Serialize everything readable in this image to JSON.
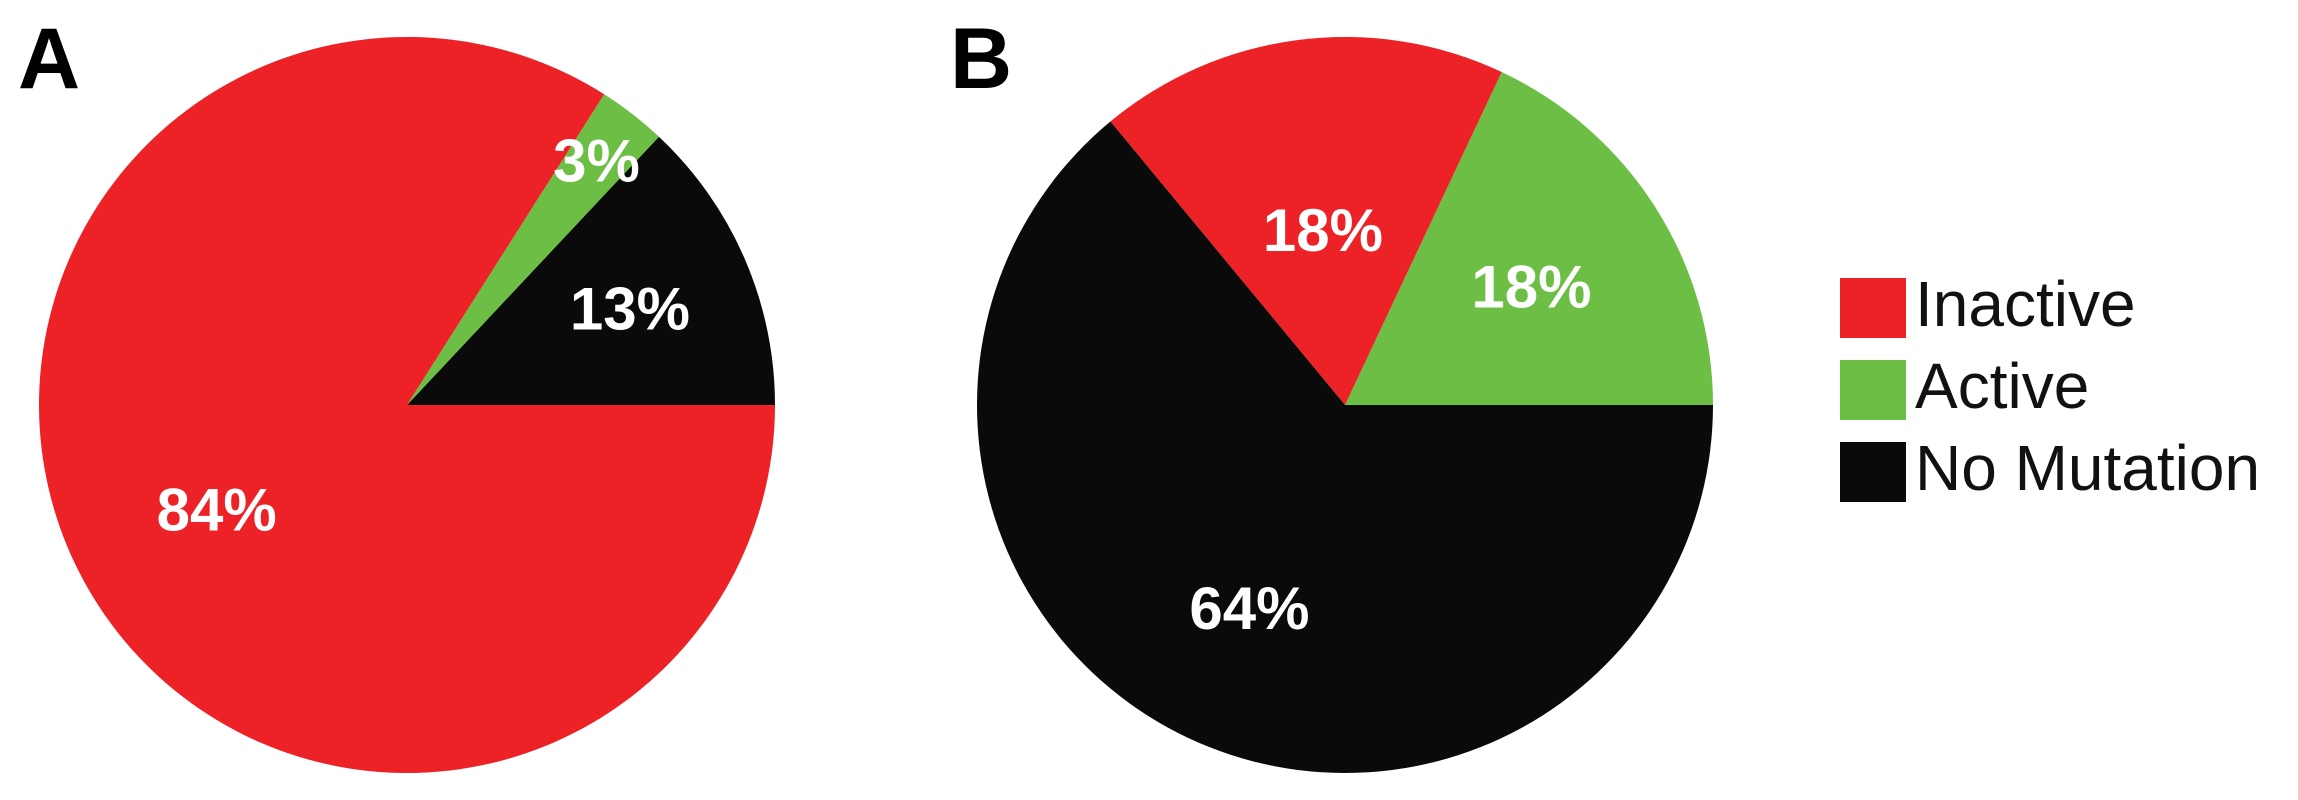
{
  "chart_data": [
    {
      "type": "pie",
      "panel_label": "A",
      "slices": [
        {
          "category": "No Mutation",
          "value": 13,
          "label": "13%"
        },
        {
          "category": "Active",
          "value": 3,
          "label": "3%"
        },
        {
          "category": "Inactive",
          "value": 84,
          "label": "84%"
        }
      ]
    },
    {
      "type": "pie",
      "panel_label": "B",
      "slices": [
        {
          "category": "Active",
          "value": 18,
          "label": "18%"
        },
        {
          "category": "Inactive",
          "value": 18,
          "label": "18%"
        },
        {
          "category": "No Mutation",
          "value": 64,
          "label": "64%"
        }
      ]
    }
  ],
  "legend": {
    "position": "right",
    "items": [
      {
        "label": "Inactive",
        "color": "#ec2227"
      },
      {
        "label": "Active",
        "color": "#6cbe45"
      },
      {
        "label": "No Mutation",
        "color": "#0a0a0a"
      }
    ]
  },
  "colors": {
    "Inactive": "#ec2227",
    "Active": "#6cbe45",
    "No Mutation": "#0a0a0a"
  }
}
